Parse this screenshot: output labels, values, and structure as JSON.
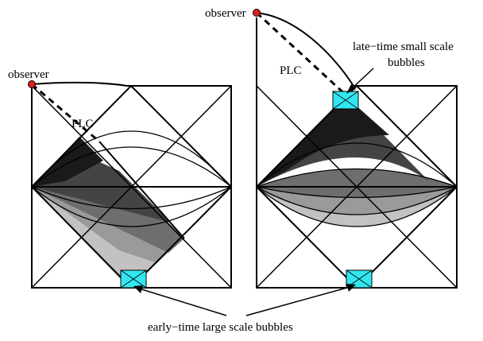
{
  "labels": {
    "observer_left": "observer",
    "observer_right": "observer",
    "plc_left": "PLC",
    "plc_right": "PLC",
    "late_line1": "late−time small scale",
    "late_line2": "bubbles",
    "early": "early−time large scale bubbles"
  },
  "colors": {
    "bubble": "#33e6f0",
    "observer_dot": "#e02020",
    "shade_dark": "#1a1a1a",
    "shade_mid": "#444444",
    "shade_light": "#6e6e6e",
    "shade_lighter": "#9a9a9a",
    "shade_lightest": "#c2c2c2"
  }
}
